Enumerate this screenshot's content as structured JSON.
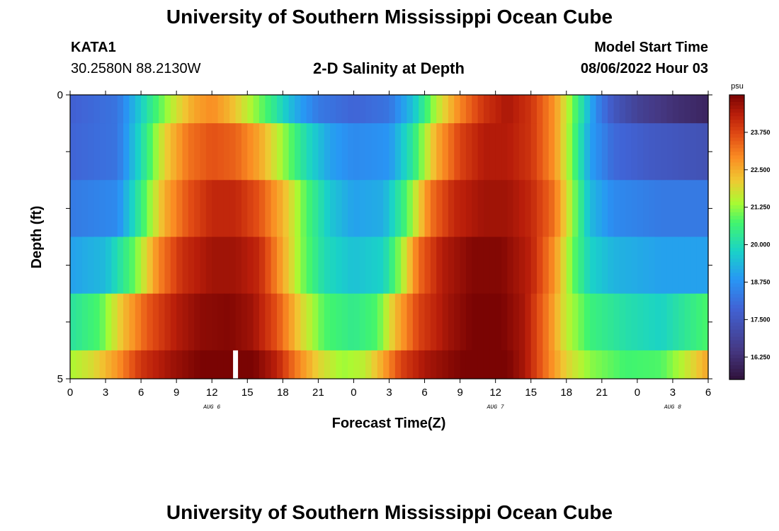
{
  "header": {
    "title": "University of Southern Mississippi Ocean Cube",
    "station": "KATA1",
    "coordinates": "30.2580N  88.2130W",
    "subtitle": "2-D Salinity at Depth",
    "model_start_label": "Model Start Time",
    "model_start_value": "08/06/2022 Hour 03"
  },
  "footer": {
    "title": "University of Southern Mississippi Ocean Cube"
  },
  "chart_data": {
    "type": "heatmap",
    "title": "2-D Salinity at Depth",
    "xlabel": "Forecast Time(Z)",
    "ylabel": "Depth (ft)",
    "x_range_hours": [
      0,
      54
    ],
    "y_range": [
      0,
      5
    ],
    "y_ticks": [
      "0",
      "5"
    ],
    "x_tick_labels": [
      "0",
      "3",
      "6",
      "9",
      "12",
      "15",
      "18",
      "21",
      "0",
      "3",
      "6",
      "9",
      "12",
      "15",
      "18",
      "21",
      "0",
      "3",
      "6"
    ],
    "day_labels": [
      {
        "label": "AUG 6",
        "hour": 12
      },
      {
        "label": "AUG 7",
        "hour": 36
      },
      {
        "label": "AUG 8",
        "hour": 51
      }
    ],
    "colorbar": {
      "unit": "psu",
      "min": 15.5,
      "max": 25.0,
      "tick_labels": [
        "16.250",
        "17.500",
        "18.750",
        "20.000",
        "21.250",
        "22.500",
        "23.750"
      ],
      "tick_values": [
        16.25,
        17.5,
        18.75,
        20.0,
        21.25,
        22.5,
        23.75
      ]
    },
    "rows": [
      {
        "depth": "0-0.5",
        "keys": [
          [
            0,
            17.8
          ],
          [
            4,
            18.2
          ],
          [
            7,
            20.5
          ],
          [
            9,
            21.8
          ],
          [
            10.5,
            22.6
          ],
          [
            12,
            22.9
          ],
          [
            13.5,
            22.4
          ],
          [
            15,
            21.6
          ],
          [
            17,
            20.5
          ],
          [
            19,
            19.2
          ],
          [
            21,
            18.3
          ],
          [
            24,
            17.9
          ],
          [
            27,
            18.2
          ],
          [
            29,
            19.5
          ],
          [
            31,
            21.5
          ],
          [
            33,
            23.0
          ],
          [
            35,
            24.0
          ],
          [
            37,
            24.5
          ],
          [
            39,
            24.0
          ],
          [
            41,
            22.8
          ],
          [
            43,
            20.5
          ],
          [
            44.5,
            18.6
          ],
          [
            46,
            17.5
          ],
          [
            48,
            16.8
          ],
          [
            51,
            16.3
          ],
          [
            54,
            16.0
          ]
        ]
      },
      {
        "depth": "0.5-1.5",
        "keys": [
          [
            0,
            17.9
          ],
          [
            4,
            18.2
          ],
          [
            6,
            20.0
          ],
          [
            8,
            22.0
          ],
          [
            10,
            23.2
          ],
          [
            12,
            23.6
          ],
          [
            14,
            23.4
          ],
          [
            16,
            22.6
          ],
          [
            18,
            21.3
          ],
          [
            20,
            20.0
          ],
          [
            22,
            19.0
          ],
          [
            24,
            18.6
          ],
          [
            27,
            18.8
          ],
          [
            29,
            20.3
          ],
          [
            31,
            22.5
          ],
          [
            33,
            23.8
          ],
          [
            35,
            24.4
          ],
          [
            37,
            24.4
          ],
          [
            39,
            24.0
          ],
          [
            41,
            22.8
          ],
          [
            42.5,
            21.0
          ],
          [
            44,
            19.0
          ],
          [
            46,
            18.0
          ],
          [
            49,
            17.6
          ],
          [
            54,
            17.3
          ]
        ]
      },
      {
        "depth": "1.5-2.5",
        "keys": [
          [
            0,
            18.3
          ],
          [
            4,
            18.6
          ],
          [
            6,
            20.5
          ],
          [
            8,
            22.5
          ],
          [
            10,
            23.6
          ],
          [
            12,
            24.2
          ],
          [
            14,
            24.2
          ],
          [
            16,
            23.6
          ],
          [
            18,
            22.4
          ],
          [
            20,
            20.8
          ],
          [
            22,
            19.6
          ],
          [
            24,
            19.0
          ],
          [
            26.5,
            19.2
          ],
          [
            28.5,
            20.8
          ],
          [
            30.5,
            23.2
          ],
          [
            32.5,
            24.2
          ],
          [
            35,
            24.6
          ],
          [
            37,
            24.6
          ],
          [
            39,
            24.2
          ],
          [
            41,
            23.2
          ],
          [
            42.5,
            21.3
          ],
          [
            44,
            19.4
          ],
          [
            46,
            18.6
          ],
          [
            50,
            18.3
          ],
          [
            54,
            18.3
          ]
        ]
      },
      {
        "depth": "2.5-3.5",
        "keys": [
          [
            0,
            19.0
          ],
          [
            3,
            19.4
          ],
          [
            5.5,
            21.0
          ],
          [
            7.5,
            23.0
          ],
          [
            9.5,
            24.1
          ],
          [
            12,
            24.6
          ],
          [
            14,
            24.6
          ],
          [
            16,
            24.2
          ],
          [
            17.5,
            23.0
          ],
          [
            19.5,
            21.2
          ],
          [
            21.5,
            20.0
          ],
          [
            24,
            19.5
          ],
          [
            26.5,
            19.8
          ],
          [
            28,
            21.3
          ],
          [
            29.5,
            23.3
          ],
          [
            31.5,
            24.4
          ],
          [
            34,
            24.9
          ],
          [
            36.5,
            24.9
          ],
          [
            39,
            24.3
          ],
          [
            41,
            22.8
          ],
          [
            42.5,
            21.0
          ],
          [
            44,
            19.8
          ],
          [
            46,
            19.3
          ],
          [
            50,
            19.0
          ],
          [
            54,
            19.0
          ]
        ]
      },
      {
        "depth": "3.5-4.5",
        "keys": [
          [
            0,
            20.2
          ],
          [
            2.5,
            20.8
          ],
          [
            4.5,
            22.3
          ],
          [
            6.5,
            23.5
          ],
          [
            9,
            24.4
          ],
          [
            11,
            24.8
          ],
          [
            13.5,
            24.9
          ],
          [
            15.5,
            24.6
          ],
          [
            17.5,
            23.6
          ],
          [
            19.5,
            22.0
          ],
          [
            21.5,
            20.8
          ],
          [
            24,
            20.4
          ],
          [
            26,
            20.8
          ],
          [
            27.5,
            22.3
          ],
          [
            29.5,
            23.8
          ],
          [
            32,
            24.6
          ],
          [
            34,
            25.0
          ],
          [
            36.5,
            25.0
          ],
          [
            38.5,
            24.5
          ],
          [
            40.5,
            23.0
          ],
          [
            42,
            21.6
          ],
          [
            44,
            20.6
          ],
          [
            47,
            20.1
          ],
          [
            50,
            19.8
          ],
          [
            52,
            20.3
          ],
          [
            54,
            20.8
          ]
        ]
      },
      {
        "depth": "4.5-5",
        "keys": [
          [
            0,
            21.4
          ],
          [
            2,
            21.9
          ],
          [
            4,
            22.8
          ],
          [
            6,
            24.0
          ],
          [
            8.5,
            24.6
          ],
          [
            11,
            25.0
          ],
          [
            14,
            25.2
          ],
          [
            15.5,
            25.0
          ],
          [
            17.5,
            24.3
          ],
          [
            19,
            23.2
          ],
          [
            21,
            22.0
          ],
          [
            23,
            21.3
          ],
          [
            25,
            21.6
          ],
          [
            26.5,
            22.6
          ],
          [
            28,
            23.8
          ],
          [
            30,
            24.5
          ],
          [
            32.5,
            24.9
          ],
          [
            35,
            25.2
          ],
          [
            37,
            25.0
          ],
          [
            38.5,
            24.5
          ],
          [
            40,
            23.4
          ],
          [
            42,
            22.0
          ],
          [
            44,
            21.2
          ],
          [
            47,
            20.7
          ],
          [
            50,
            20.8
          ],
          [
            52,
            21.6
          ],
          [
            54,
            22.6
          ]
        ]
      }
    ],
    "missing_data": [
      {
        "row": 5,
        "hour": 14
      }
    ]
  }
}
